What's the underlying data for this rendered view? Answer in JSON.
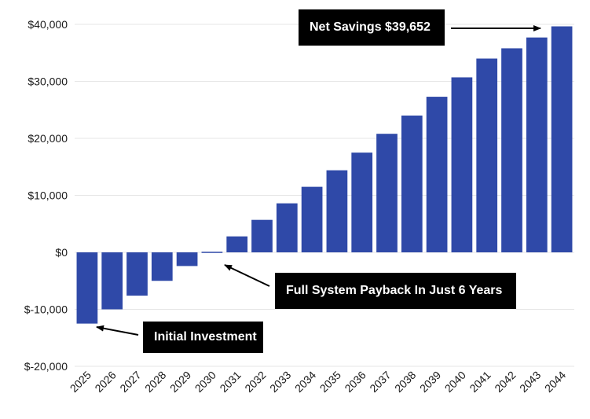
{
  "chart_data": {
    "type": "bar",
    "title": "",
    "xlabel": "",
    "ylabel": "",
    "categories": [
      "2025",
      "2026",
      "2027",
      "2028",
      "2029",
      "2030",
      "2031",
      "2032",
      "2033",
      "2034",
      "2035",
      "2036",
      "2037",
      "2038",
      "2039",
      "2040",
      "2041",
      "2042",
      "2043",
      "2044"
    ],
    "values": [
      -12500,
      -10000,
      -7600,
      -5000,
      -2400,
      100,
      2800,
      5700,
      8600,
      11500,
      14400,
      17500,
      20800,
      24000,
      27300,
      30700,
      34000,
      35800,
      37700,
      39652
    ],
    "ylim": [
      -20000,
      40000
    ],
    "yticks": [
      "$40,000",
      "$30,000",
      "$20,000",
      "$10,000",
      "$0",
      "$-10,000",
      "$-20,000"
    ],
    "ytick_values": [
      40000,
      30000,
      20000,
      10000,
      0,
      -10000,
      -20000
    ],
    "bar_color": "#2f49a8",
    "grid": true,
    "annotations": {
      "net_savings": "Net Savings $39,652",
      "payback": "Full System Payback In Just 6 Years",
      "initial": "Initial Investment"
    }
  }
}
